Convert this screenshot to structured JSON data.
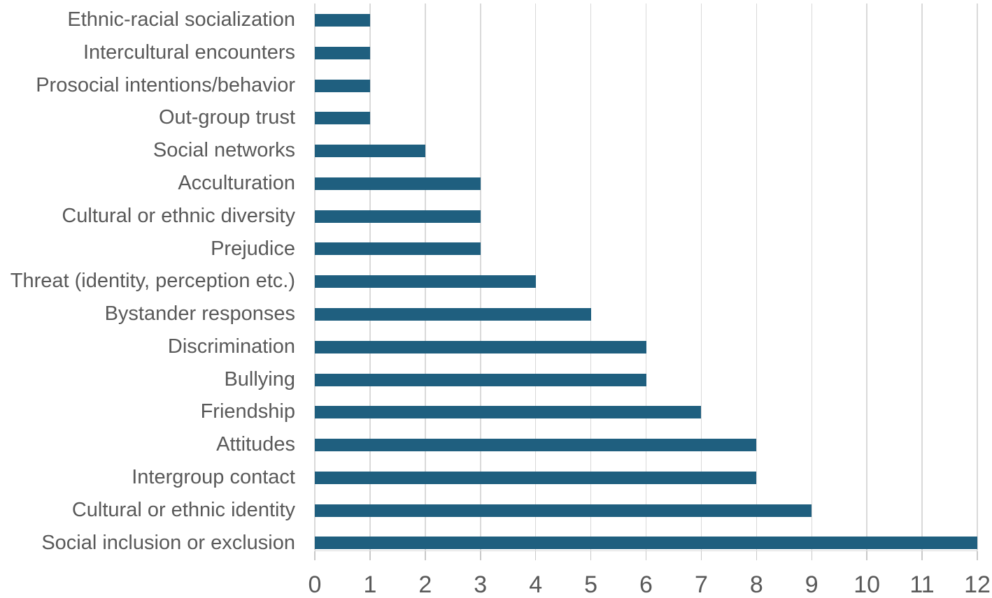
{
  "chart_data": {
    "type": "bar",
    "orientation": "horizontal",
    "title": "",
    "xlabel": "",
    "ylabel": "",
    "categories": [
      "Ethnic-racial socialization",
      "Intercultural encounters",
      "Prosocial intentions/behavior",
      "Out-group trust",
      "Social networks",
      "Acculturation",
      "Cultural or ethnic diversity",
      "Prejudice",
      "Threat (identity, perception etc.)",
      "Bystander responses",
      "Discrimination",
      "Bullying",
      "Friendship",
      "Attitudes",
      "Intergroup contact",
      "Cultural or ethnic identity",
      "Social inclusion or exclusion"
    ],
    "values": [
      1,
      1,
      1,
      1,
      2,
      3,
      3,
      3,
      4,
      5,
      6,
      6,
      7,
      8,
      8,
      9,
      12
    ],
    "xlim": [
      0,
      12
    ],
    "x_ticks": [
      "0",
      "1",
      "2",
      "3",
      "4",
      "5",
      "6",
      "7",
      "8",
      "9",
      "10",
      "11",
      "12"
    ],
    "grid": true,
    "legend": false,
    "colors": {
      "bar": "#1F5F7F",
      "gridline": "#D9D9D9",
      "tick": "#C9C9C9",
      "text": "#595959",
      "background": "#FFFFFF"
    }
  }
}
